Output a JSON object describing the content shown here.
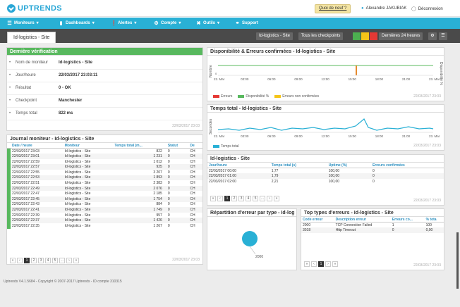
{
  "app": {
    "logo": "UPTRENDS",
    "news": "Quoi de neuf ?",
    "user": "Alexandre JAKUBIAK",
    "logout": "Déconnexion"
  },
  "nav": {
    "items": [
      "Moniteurs",
      "Dashboards",
      "Alertes",
      "Compte",
      "Outils",
      "Support"
    ],
    "icons": [
      "list-icon",
      "bar-chart-icon",
      "alert-icon",
      "gear-icon",
      "tools-icon",
      "headset-icon"
    ]
  },
  "subbar": {
    "tab": "Id-logistics - Site",
    "monitor": "Id-logistics - Site",
    "checkpoints": "Tous les checkpoints",
    "range": "Dernières 24 heures",
    "colors": [
      "#4caf50",
      "#f5c518",
      "#e53935"
    ]
  },
  "last_check": {
    "title": "Dernière vérification",
    "rows": [
      [
        "Nom de moniteur",
        "Id-logistics - Site"
      ],
      [
        "Jour/heure",
        "22/03/2017 23:03:11"
      ],
      [
        "Résultat",
        "0 - OK"
      ],
      [
        "Checkpoint",
        "Manchester"
      ],
      [
        "Temps total",
        "822 ms"
      ]
    ],
    "icons": [
      "pen-icon",
      "clock-icon",
      "search-icon",
      "pin-icon",
      "speed-icon"
    ],
    "ts": "22/03/2017 23:03"
  },
  "journal": {
    "title": "Journal moniteur -  Id-logistics - Site",
    "headers": [
      "Date / heure",
      "Moniteur",
      "Temps total (m...",
      "Statut",
      "De"
    ],
    "rows": [
      [
        "22/03/2017 23:03",
        "Id-logistics - Site",
        "822",
        "0",
        "CH"
      ],
      [
        "22/03/2017 23:01",
        "Id-logistics - Site",
        "1 231",
        "0",
        "CH"
      ],
      [
        "22/03/2017 22:59",
        "Id-logistics - Site",
        "1 012",
        "0",
        "CH"
      ],
      [
        "22/03/2017 22:57",
        "Id-logistics - Site",
        "925",
        "0",
        "CH"
      ],
      [
        "22/03/2017 22:55",
        "Id-logistics - Site",
        "3 207",
        "0",
        "CH"
      ],
      [
        "22/03/2017 22:53",
        "Id-logistics - Site",
        "1 893",
        "0",
        "CH"
      ],
      [
        "22/03/2017 22:51",
        "Id-logistics - Site",
        "2 383",
        "0",
        "CH"
      ],
      [
        "22/03/2017 22:49",
        "Id-logistics - Site",
        "2 076",
        "0",
        "CH"
      ],
      [
        "22/03/2017 22:47",
        "Id-logistics - Site",
        "2 185",
        "0",
        "CH"
      ],
      [
        "22/03/2017 22:45",
        "Id-logistics - Site",
        "1 754",
        "0",
        "CH"
      ],
      [
        "22/03/2017 22:43",
        "Id-logistics - Site",
        "884",
        "0",
        "CH"
      ],
      [
        "22/03/2017 22:41",
        "Id-logistics - Site",
        "1 749",
        "0",
        "CH"
      ],
      [
        "22/03/2017 22:39",
        "Id-logistics - Site",
        "957",
        "0",
        "CH"
      ],
      [
        "22/03/2017 22:37",
        "Id-logistics - Site",
        "1 426",
        "0",
        "CH"
      ],
      [
        "22/03/2017 22:35",
        "Id-logistics - Site",
        "1 267",
        "0",
        "CH"
      ]
    ],
    "pages": [
      "1",
      "2",
      "3",
      "4",
      "5",
      "..."
    ],
    "ts": "22/03/2017 23:03"
  },
  "dispo": {
    "title": "Disponibilité & Erreurs confirmées -  Id-logistics - Site",
    "ylabel": "Nombre",
    "y2label": "Disponibilité %",
    "xticks": [
      "22. Mar",
      "03:00",
      "06:00",
      "09:00",
      "12:00",
      "15:00",
      "18:00",
      "21:00",
      "23. Mar"
    ],
    "legend": [
      [
        "Erreurs",
        "#e53935"
      ],
      [
        "Disponibilité %",
        "#58b85e"
      ],
      [
        "Erreurs non confirmées",
        "#f5c518"
      ]
    ],
    "ts": "22/03/2017 23:03"
  },
  "temps": {
    "title": "Temps total -  Id-logistics - Site",
    "ylabel": "Secondes",
    "xticks": [
      "22. Mar",
      "03:00",
      "06:00",
      "09:00",
      "12:00",
      "15:00",
      "18:00",
      "21:00",
      "23. Mar"
    ],
    "legend": "Temps total",
    "ts": "22/03/2017 23:03"
  },
  "site_table": {
    "title": "Id-logistics - Site",
    "headers": [
      "Jour/heure",
      "Temps total (s)",
      "Uptime (%)",
      "Erreurs confirmées"
    ],
    "rows": [
      [
        "22/03/2017 00:00",
        "1,77",
        "100,00",
        "0"
      ],
      [
        "22/03/2017 01:00",
        "1,79",
        "100,00",
        "0"
      ],
      [
        "22/03/2017 02:00",
        "2,21",
        "100,00",
        "0"
      ]
    ],
    "pages": [
      "1",
      "2",
      "3",
      "4",
      "5",
      "..."
    ],
    "ts": "22/03/2017 23:03"
  },
  "repartition": {
    "title": "Répartition d'erreur par type -  Id-log",
    "label": "2000"
  },
  "top_errors": {
    "title": "Top types d'erreurs -  Id-logistics - Site",
    "headers": [
      "Code erreur",
      "Description erreur",
      "Erreurs co...",
      "% tota"
    ],
    "rows": [
      [
        "2000",
        "TCP Connection Failed",
        "1",
        "100"
      ],
      [
        "3018",
        "Http Timeout",
        "0",
        "0,00"
      ]
    ],
    "pages": [
      "1"
    ],
    "ts": "22/03/2017 23:03"
  },
  "footer": "Uptrends V4.1.5684 - Copyright © 2007-2017 Uptrends - ID compte 310315"
}
